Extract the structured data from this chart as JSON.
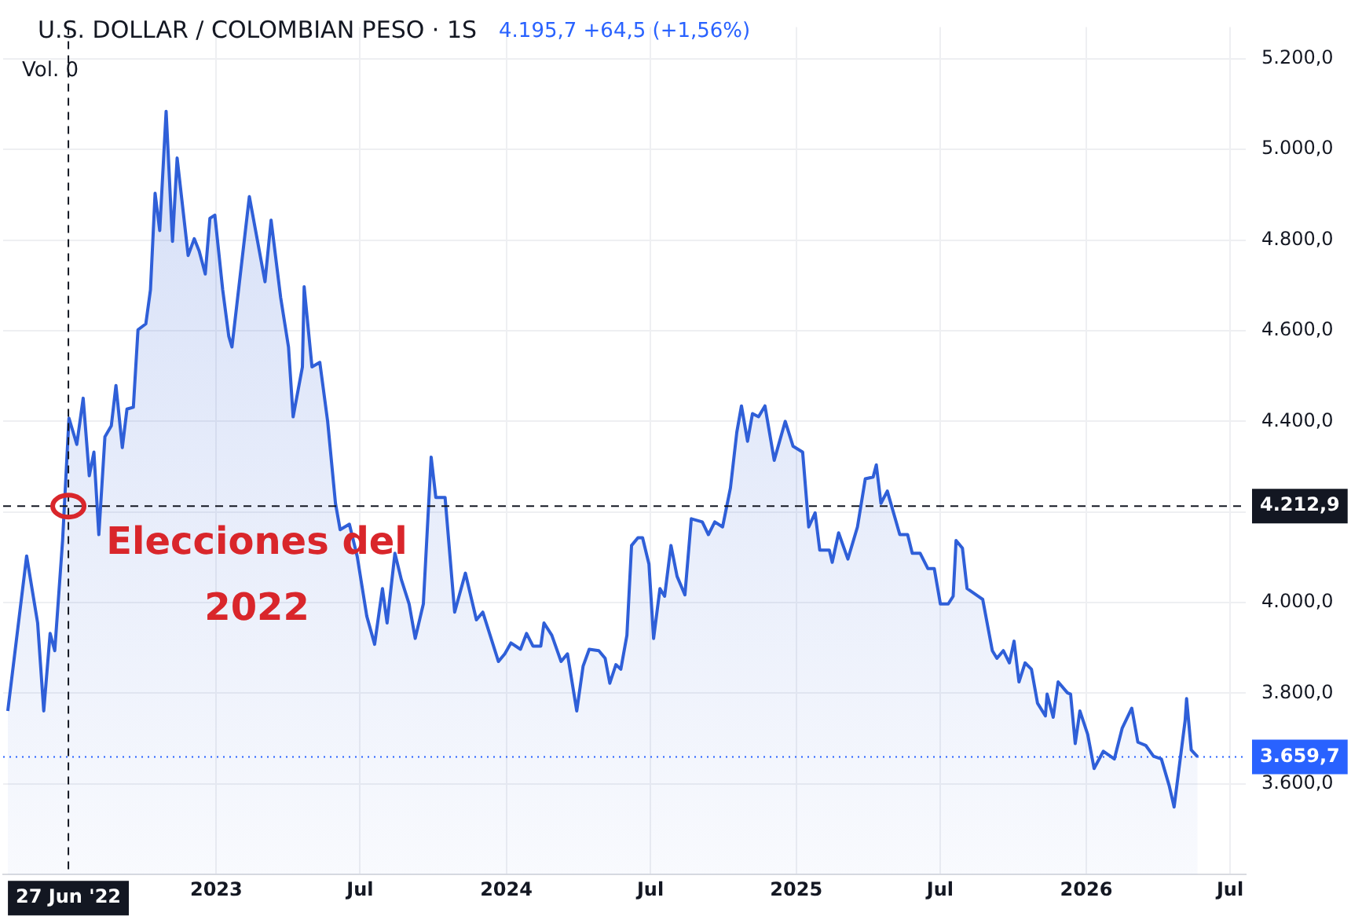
{
  "chart_data": {
    "type": "area",
    "title": "U.S. DOLLAR / COLOMBIAN PESO · 1S",
    "subtitle": "4.195,7 +64,5 (+1,56%)",
    "annotations": [
      "Vol. 0",
      {
        "text": "Elecciones del 2022",
        "x": 2022.49,
        "y": 4212.9
      }
    ],
    "x": [
      2022.281,
      2022.346,
      2022.384,
      2022.405,
      2022.427,
      2022.443,
      2022.47,
      2022.492,
      2022.519,
      2022.541,
      2022.562,
      2022.578,
      2022.595,
      2022.616,
      2022.638,
      2022.654,
      2022.676,
      2022.692,
      2022.714,
      2022.73,
      2022.757,
      2022.773,
      2022.789,
      2022.805,
      2022.827,
      2022.849,
      2022.865,
      2022.903,
      2022.924,
      2022.941,
      2022.962,
      2022.978,
      2022.995,
      2023.022,
      2023.043,
      2023.054,
      2023.114,
      2023.168,
      2023.189,
      2023.222,
      2023.249,
      2023.265,
      2023.297,
      2023.303,
      2023.33,
      2023.357,
      2023.384,
      2023.411,
      2023.427,
      2023.459,
      2023.486,
      2023.519,
      2023.546,
      2023.573,
      2023.589,
      2023.616,
      2023.638,
      2023.665,
      2023.686,
      2023.714,
      2023.741,
      2023.757,
      2023.789,
      2023.822,
      2023.859,
      2023.897,
      2023.919,
      2023.973,
      2023.995,
      2024.016,
      2024.049,
      2024.07,
      2024.092,
      2024.119,
      2024.13,
      2024.157,
      2024.189,
      2024.211,
      2024.243,
      2024.265,
      2024.286,
      2024.319,
      2024.341,
      2024.357,
      2024.378,
      2024.395,
      2024.416,
      2024.432,
      2024.454,
      2024.47,
      2024.492,
      2024.508,
      2024.53,
      2024.546,
      2024.568,
      2024.589,
      2024.616,
      2024.638,
      2024.676,
      2024.697,
      2024.719,
      2024.746,
      2024.773,
      2024.795,
      2024.811,
      2024.832,
      2024.849,
      2024.87,
      2024.892,
      2024.924,
      2024.962,
      2024.989,
      2025.022,
      2025.043,
      2025.065,
      2025.081,
      2025.114,
      2025.124,
      2025.146,
      2025.178,
      2025.211,
      2025.238,
      2025.265,
      2025.276,
      2025.292,
      2025.314,
      2025.357,
      2025.384,
      2025.4,
      2025.427,
      2025.454,
      2025.476,
      2025.497,
      2025.524,
      2025.541,
      2025.551,
      2025.573,
      2025.589,
      2025.627,
      2025.643,
      2025.676,
      2025.692,
      2025.714,
      2025.735,
      2025.751,
      2025.768,
      2025.789,
      2025.811,
      2025.832,
      2025.859,
      2025.865,
      2025.886,
      2025.903,
      2025.935,
      2025.946,
      2025.962,
      2025.978,
      2026.005,
      2026.027,
      2026.059,
      2026.097,
      2026.124,
      2026.157,
      2026.178,
      2026.205,
      2026.232,
      2026.259,
      2026.286,
      2026.303,
      2026.341,
      2026.346,
      2026.362,
      2026.384
    ],
    "series": [
      {
        "color": "#2f5fd8",
        "values": [
          3761,
          4103,
          3955,
          3761,
          3932,
          3894,
          4137,
          4407,
          4349,
          4451,
          4280,
          4332,
          4150,
          4366,
          4390,
          4479,
          4342,
          4427,
          4431,
          4602,
          4615,
          4690,
          4903,
          4821,
          5084,
          4797,
          4981,
          4766,
          4803,
          4776,
          4725,
          4848,
          4855,
          4691,
          4588,
          4564,
          4896,
          4708,
          4844,
          4673,
          4564,
          4410,
          4520,
          4697,
          4520,
          4530,
          4400,
          4219,
          4161,
          4173,
          4102,
          3970,
          3908,
          4031,
          3955,
          4109,
          4051,
          3997,
          3921,
          3997,
          4321,
          4232,
          4232,
          3979,
          4065,
          3962,
          3979,
          3870,
          3887,
          3911,
          3897,
          3932,
          3904,
          3904,
          3955,
          3928,
          3870,
          3887,
          3761,
          3860,
          3897,
          3894,
          3877,
          3822,
          3863,
          3853,
          3928,
          4126,
          4143,
          4143,
          4085,
          3921,
          4031,
          4014,
          4126,
          4058,
          4017,
          4185,
          4178,
          4150,
          4178,
          4167,
          4253,
          4376,
          4434,
          4356,
          4417,
          4410,
          4434,
          4314,
          4400,
          4345,
          4332,
          4167,
          4198,
          4116,
          4116,
          4089,
          4154,
          4096,
          4167,
          4273,
          4277,
          4304,
          4219,
          4246,
          4150,
          4150,
          4109,
          4109,
          4075,
          4075,
          3997,
          3997,
          4014,
          4137,
          4120,
          4031,
          4014,
          4007,
          3894,
          3877,
          3894,
          3867,
          3915,
          3825,
          3867,
          3853,
          3778,
          3750,
          3798,
          3747,
          3825,
          3801,
          3798,
          3689,
          3761,
          3709,
          3634,
          3672,
          3655,
          3723,
          3767,
          3692,
          3685,
          3661,
          3655,
          3596,
          3549,
          3740,
          3788,
          3675,
          3659.7
        ]
      }
    ],
    "xlim": [
      2022.265,
      2026.55
    ],
    "xticks": [
      2023,
      {
        "value": 2023.496,
        "label": "Jul"
      },
      2024,
      {
        "value": 2024.497,
        "label": "Jul"
      },
      2025,
      {
        "value": 2025.496,
        "label": "Jul"
      },
      2026,
      {
        "value": 2026.496,
        "label": "Jul"
      }
    ],
    "ylim": [
      3400,
      5270
    ],
    "yticks": [
      {
        "value": 3600,
        "label": "3.600,0"
      },
      {
        "value": 3800,
        "label": "3.800,0"
      },
      {
        "value": 4000,
        "label": "4.000,0"
      },
      {
        "value": 4200,
        "label": null
      },
      {
        "value": 4400,
        "label": "4.400,0"
      },
      {
        "value": 4600,
        "label": "4.600,0"
      },
      {
        "value": 4800,
        "label": "4.800,0"
      },
      {
        "value": 5000,
        "label": "5.000,0"
      },
      {
        "value": 5200,
        "label": "5.200,0"
      }
    ],
    "ref_lines": [
      {
        "axis": "y",
        "value": 4212.9,
        "label": "4.212,9",
        "color": "#131722",
        "line_style": "dashed"
      },
      {
        "axis": "y",
        "value": 3659.7,
        "label": "3.659,7",
        "color": "#2962ff",
        "line_style": "dotted"
      },
      {
        "axis": "x",
        "value": 2022.49,
        "label": "27 Jun '22",
        "color": "#131722",
        "line_style": "dashed"
      }
    ],
    "grid": true,
    "legend": false,
    "marker": "none",
    "line_style": "solid"
  }
}
